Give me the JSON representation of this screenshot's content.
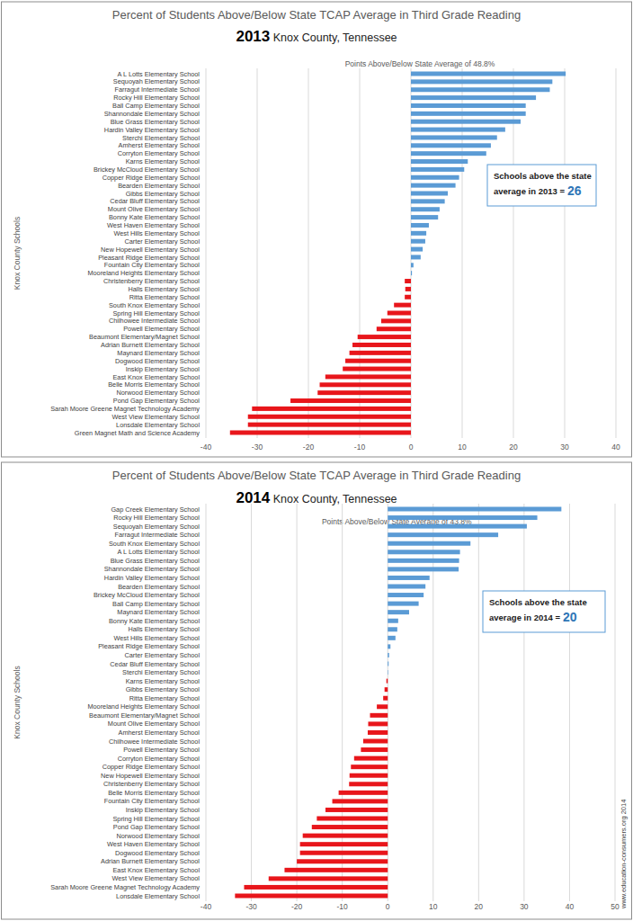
{
  "chart_data": [
    {
      "type": "bar",
      "orientation": "horizontal",
      "grid": true,
      "title": "Percent of Students Above/Below State TCAP Average in Third Grade Reading",
      "subtitle": "2013 Knox County, Tennessee",
      "x_label": "Points Above/Below State Average of  48.8%",
      "y_label": "Knox County Schools",
      "annotations": [
        {
          "lines": [
            "Schools above the state",
            "average in 2013 ="
          ],
          "value": 26
        }
      ],
      "xlim": [
        -40,
        40
      ],
      "xticks": [
        -40,
        -30,
        -20,
        -10,
        0,
        10,
        20,
        30,
        40
      ],
      "categories": [
        "A L Lotts Elementary School",
        "Sequoyah Elementary School",
        "Farragut Intermediate School",
        "Rocky Hill Elementary School",
        "Ball Camp Elementary School",
        "Shannondale Elementary School",
        "Blue Grass Elementary School",
        "Hardin Valley Elementary School",
        "Sterchi Elementary School",
        "Amherst Elementary School",
        "Corryton Elementary School",
        "Karns Elementary School",
        "Brickey McCloud Elementary School",
        "Copper Ridge Elementary School",
        "Bearden Elementary School",
        "Gibbs Elementary School",
        "Cedar Bluff Elementary School",
        "Mount Olive Elementary School",
        "Bonny Kate Elementary School",
        "West Haven Elementary School",
        "West Hills Elementary School",
        "Carter Elementary School",
        "New Hopewell Elementary School",
        "Pleasant Ridge Elementary School",
        "Fountain City Elementary School",
        "Mooreland Heights Elementary School",
        "Christenberry Elementary School",
        "Halls Elementary School",
        "Ritta Elementary School",
        "South Knox Elementary School",
        "Spring Hill Elementary School",
        "Chilhowee Intermediate School",
        "Powell Elementary School",
        "Beaumont Elementary/Magnet School",
        "Adrian Burnett Elementary School",
        "Maynard Elementary School",
        "Dogwood Elementary School",
        "Inskip Elementary School",
        "East Knox Elementary School",
        "Belle Morris Elementary School",
        "Norwood Elementary School",
        "Pond Gap Elementary School",
        "Sarah Moore Greene Magnet Technology Academy",
        "West View Elementary School",
        "Lonsdale Elementary School",
        "Green Magnet Math and Science Academy"
      ],
      "values": [
        30.2,
        27.6,
        27.1,
        24.4,
        22.4,
        22.4,
        21.4,
        18.4,
        16.8,
        15.6,
        14.7,
        11.1,
        10.4,
        9.4,
        8.7,
        7.2,
        6.6,
        5.6,
        5.3,
        3.5,
        3.0,
        2.8,
        2.3,
        1.9,
        0.5,
        0.2,
        -1.2,
        -1.1,
        -1.2,
        -3.3,
        -4.6,
        -5.8,
        -6.7,
        -10.4,
        -11.4,
        -12.0,
        -12.8,
        -13.3,
        -16.7,
        -17.8,
        -18.2,
        -23.5,
        -31.0,
        -31.8,
        -31.8,
        -35.3
      ],
      "colors": [
        "#5b9bd5",
        "#5b9bd5",
        "#5b9bd5",
        "#5b9bd5",
        "#5b9bd5",
        "#5b9bd5",
        "#5b9bd5",
        "#5b9bd5",
        "#5b9bd5",
        "#5b9bd5",
        "#5b9bd5",
        "#5b9bd5",
        "#5b9bd5",
        "#5b9bd5",
        "#5b9bd5",
        "#5b9bd5",
        "#5b9bd5",
        "#5b9bd5",
        "#5b9bd5",
        "#5b9bd5",
        "#5b9bd5",
        "#5b9bd5",
        "#5b9bd5",
        "#5b9bd5",
        "#5b9bd5",
        "#5b9bd5",
        "#e8161b",
        "#e8161b",
        "#e8161b",
        "#e8161b",
        "#e8161b",
        "#e8161b",
        "#e8161b",
        "#e8161b",
        "#e8161b",
        "#e8161b",
        "#e8161b",
        "#e8161b",
        "#e8161b",
        "#e8161b",
        "#e8161b",
        "#e8161b",
        "#e8161b",
        "#e8161b",
        "#e8161b",
        "#e8161b"
      ]
    },
    {
      "type": "bar",
      "orientation": "horizontal",
      "grid": true,
      "title": "Percent of Students Above/Below State TCAP Average in Third Grade Reading",
      "subtitle": "2014 Knox County, Tennessee",
      "x_label": "Points Above/Below State Average of  43.8%",
      "y_label": "Knox County Schools",
      "annotations": [
        {
          "lines": [
            "Schools above the state",
            "average in 2014 ="
          ],
          "value": 20
        }
      ],
      "source": "www.education-consumers.org 2014",
      "xlim": [
        -40,
        50
      ],
      "xticks": [
        -40,
        -30,
        -20,
        -10,
        0,
        10,
        20,
        30,
        40,
        50
      ],
      "categories": [
        "Gap Creek Elementary School",
        "Rocky Hill Elementary School",
        "Sequoyah Elementary School",
        "Farragut Intermediate School",
        "South Knox Elementary School",
        "A L Lotts Elementary School",
        "Blue Grass Elementary School",
        "Shannondale Elementary School",
        "Hardin Valley Elementary School",
        "Bearden Elementary School",
        "Brickey McCloud Elementary School",
        "Ball Camp Elementary School",
        "Maynard Elementary School",
        "Bonny Kate Elementary School",
        "Halls Elementary School",
        "West Hills Elementary School",
        "Pleasant Ridge Elementary School",
        "Carter Elementary School",
        "Cedar Bluff Elementary School",
        "Sterchi Elementary School",
        "Karns Elementary School",
        "Gibbs Elementary School",
        "Ritta Elementary School",
        "Mooreland Heights Elementary School",
        "Beaumont Elementary/Magnet School",
        "Mount Olive Elementary School",
        "Amherst Elementary School",
        "Chilhowee Intermediate School",
        "Powell Elementary School",
        "Corryton Elementary School",
        "Copper Ridge Elementary School",
        "New Hopewell Elementary School",
        "Christenberry Elementary School",
        "Belle Morris Elementary School",
        "Fountain City Elementary School",
        "Inskip Elementary School",
        "Spring Hill Elementary School",
        "Pond Gap Elementary School",
        "Norwood Elementary School",
        "West Haven Elementary School",
        "Dogwood Elementary School",
        "Adrian Burnett Elementary School",
        "East Knox Elementary School",
        "West View Elementary School",
        "Sarah Moore Greene Magnet Technology Academy",
        "Lonsdale Elementary School"
      ],
      "values": [
        38.2,
        32.9,
        30.6,
        24.3,
        18.2,
        15.9,
        15.7,
        15.6,
        9.2,
        8.3,
        7.9,
        6.8,
        4.7,
        2.3,
        2.1,
        1.7,
        0.6,
        0.3,
        0.2,
        0.1,
        -0.3,
        -0.7,
        -1.0,
        -2.4,
        -3.9,
        -4.3,
        -4.4,
        -5.4,
        -5.9,
        -7.4,
        -8.1,
        -8.4,
        -8.5,
        -10.8,
        -12.2,
        -13.7,
        -15.6,
        -16.7,
        -18.7,
        -19.3,
        -19.3,
        -20.0,
        -22.7,
        -26.2,
        -31.6,
        -33.6
      ],
      "colors": [
        "#5b9bd5",
        "#5b9bd5",
        "#5b9bd5",
        "#5b9bd5",
        "#5b9bd5",
        "#5b9bd5",
        "#5b9bd5",
        "#5b9bd5",
        "#5b9bd5",
        "#5b9bd5",
        "#5b9bd5",
        "#5b9bd5",
        "#5b9bd5",
        "#5b9bd5",
        "#5b9bd5",
        "#5b9bd5",
        "#5b9bd5",
        "#5b9bd5",
        "#5b9bd5",
        "#5b9bd5",
        "#e8161b",
        "#e8161b",
        "#e8161b",
        "#e8161b",
        "#e8161b",
        "#e8161b",
        "#e8161b",
        "#e8161b",
        "#e8161b",
        "#e8161b",
        "#e8161b",
        "#e8161b",
        "#e8161b",
        "#e8161b",
        "#e8161b",
        "#e8161b",
        "#e8161b",
        "#e8161b",
        "#e8161b",
        "#e8161b",
        "#e8161b",
        "#e8161b",
        "#e8161b",
        "#e8161b",
        "#e8161b",
        "#e8161b"
      ]
    }
  ]
}
